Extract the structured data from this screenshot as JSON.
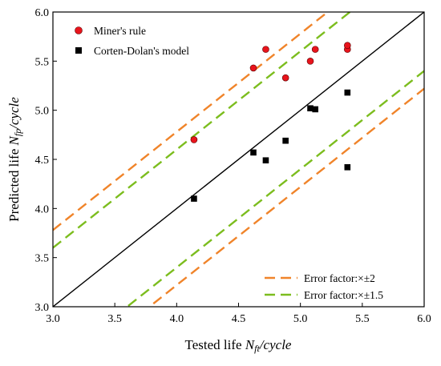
{
  "chart_data": {
    "type": "scatter",
    "xlim": [
      3.0,
      6.0
    ],
    "ylim": [
      3.0,
      6.0
    ],
    "x_ticks": [
      "3.0",
      "3.5",
      "4.0",
      "4.5",
      "5.0",
      "5.5",
      "6.0"
    ],
    "y_ticks": [
      "3.0",
      "3.5",
      "4.0",
      "4.5",
      "5.0",
      "5.5",
      "6.0"
    ],
    "xlabel": {
      "main": "Tested life ",
      "sym": "N",
      "sub": "ft",
      "tail": "/cycle"
    },
    "ylabel": {
      "main": "Predicted life ",
      "sym": "N",
      "sub": "fp",
      "tail": "/cycle"
    },
    "grid": false,
    "series": [
      {
        "name": "Miner's rule",
        "marker": "circle",
        "color": "#e8141c",
        "points": [
          [
            4.14,
            4.7
          ],
          [
            4.62,
            5.43
          ],
          [
            4.72,
            5.62
          ],
          [
            4.88,
            5.33
          ],
          [
            5.08,
            5.5
          ],
          [
            5.12,
            5.62
          ],
          [
            5.38,
            5.62
          ],
          [
            5.38,
            5.66
          ]
        ]
      },
      {
        "name": "Corten-Dolan's model",
        "marker": "square",
        "color": "#000000",
        "points": [
          [
            4.14,
            4.1
          ],
          [
            4.62,
            4.57
          ],
          [
            4.72,
            4.49
          ],
          [
            4.88,
            4.69
          ],
          [
            5.08,
            5.02
          ],
          [
            5.12,
            5.01
          ],
          [
            5.38,
            5.18
          ],
          [
            5.38,
            4.42
          ]
        ]
      }
    ],
    "reference_lines": [
      {
        "kind": "y=x",
        "offset": 0.0,
        "color": "#000000",
        "style": "solid"
      },
      {
        "kind": "error_x2",
        "name": "Error factor:×±2",
        "offset": 0.78,
        "color": "#f0842a",
        "style": "dashed"
      },
      {
        "kind": "error_x2",
        "name": "Error factor:×±2",
        "offset": -0.78,
        "color": "#f0842a",
        "style": "dashed"
      },
      {
        "kind": "error_x1.5",
        "name": "Error factor:×±1.5",
        "offset": 0.6,
        "color": "#7cbd1e",
        "style": "dashed"
      },
      {
        "kind": "error_x1.5",
        "name": "Error factor:×±1.5",
        "offset": -0.6,
        "color": "#7cbd1e",
        "style": "dashed"
      }
    ],
    "legend_top_left": [
      {
        "label": "Miner's rule",
        "marker": "circle",
        "color": "#e8141c"
      },
      {
        "label": "Corten-Dolan's model",
        "marker": "square",
        "color": "#000000"
      }
    ],
    "legend_bottom_right": [
      {
        "label": "Error factor:×±2",
        "color": "#f0842a"
      },
      {
        "label": "Error factor:×±1.5",
        "color": "#7cbd1e"
      }
    ]
  }
}
